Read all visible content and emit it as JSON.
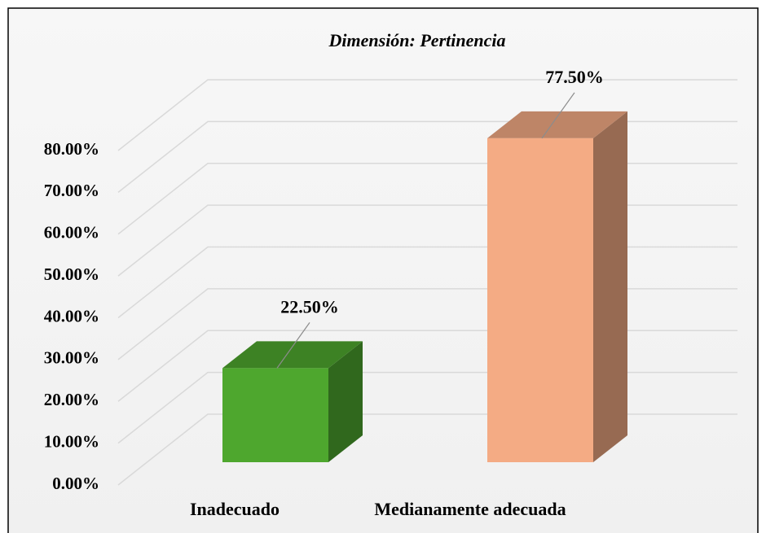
{
  "chart_data": {
    "type": "bar3d",
    "title": "Dimensión: Pertinencia",
    "categories": [
      "Inadecuado",
      "Medianamente adecuada"
    ],
    "values": [
      22.5,
      77.5
    ],
    "value_labels": [
      "22.50%",
      "77.50%"
    ],
    "colors": [
      "#4ea72e",
      "#f4ab84"
    ],
    "ylim": [
      0,
      80
    ],
    "yticks": [
      {
        "value": 0,
        "label": "0.00%"
      },
      {
        "value": 10,
        "label": "10.00%"
      },
      {
        "value": 20,
        "label": "20.00%"
      },
      {
        "value": 30,
        "label": "30.00%"
      },
      {
        "value": 40,
        "label": "40.00%"
      },
      {
        "value": 50,
        "label": "50.00%"
      },
      {
        "value": 60,
        "label": "60.00%"
      },
      {
        "value": 70,
        "label": "70.00%"
      },
      {
        "value": 80,
        "label": "80.00%"
      }
    ],
    "grid": true
  }
}
